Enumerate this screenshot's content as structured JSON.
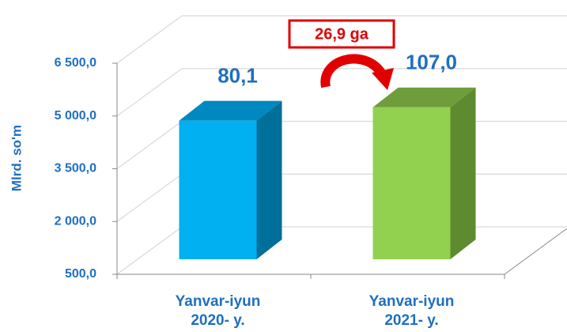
{
  "chart_data": {
    "type": "bar3d",
    "y_label": "Mlrd. so'm",
    "categories": [
      [
        "Yanvar-iyun",
        "2020- y."
      ],
      [
        "Yanvar-iyun",
        "2021- y."
      ]
    ],
    "values": [
      4440,
      4820
    ],
    "colors": [
      "#00b0f0",
      "#92d050"
    ],
    "side_colors": [
      "#006f9a",
      "#5e8a30"
    ],
    "top_colors": [
      "#0088c0",
      "#6f9d3c"
    ],
    "annotations": [
      "80,1",
      "107,0"
    ],
    "change_label": "26,9 ga",
    "ylim": [
      500,
      6500
    ],
    "yticks": [
      {
        "value": 500,
        "label": "500,0"
      },
      {
        "value": 2000,
        "label": "2 000,0"
      },
      {
        "value": 3500,
        "label": "3 500,0"
      },
      {
        "value": 5000,
        "label": "5 000,0"
      },
      {
        "value": 6500,
        "label": "6 500,0"
      }
    ],
    "grid": true
  }
}
